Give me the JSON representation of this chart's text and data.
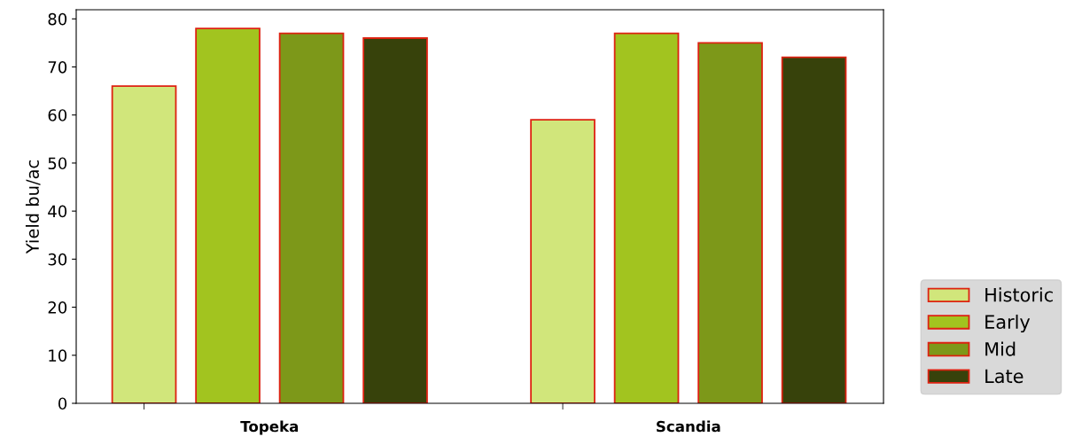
{
  "chart_data": {
    "type": "bar",
    "ylabel": "Yield bu/ac",
    "categories": [
      "Topeka",
      "Scandia"
    ],
    "series": [
      {
        "name": "Historic",
        "color": "#d1e67b",
        "values": [
          66,
          59
        ]
      },
      {
        "name": "Early",
        "color": "#a2c41f",
        "values": [
          78,
          77
        ]
      },
      {
        "name": "Mid",
        "color": "#7d9819",
        "values": [
          77,
          75
        ]
      },
      {
        "name": "Late",
        "color": "#37420b",
        "values": [
          76,
          72
        ]
      }
    ],
    "ylim": [
      0,
      81.9
    ],
    "yticks": [
      0,
      10,
      20,
      30,
      40,
      50,
      60,
      70,
      80
    ],
    "grid": false,
    "legend": "bottom right"
  }
}
